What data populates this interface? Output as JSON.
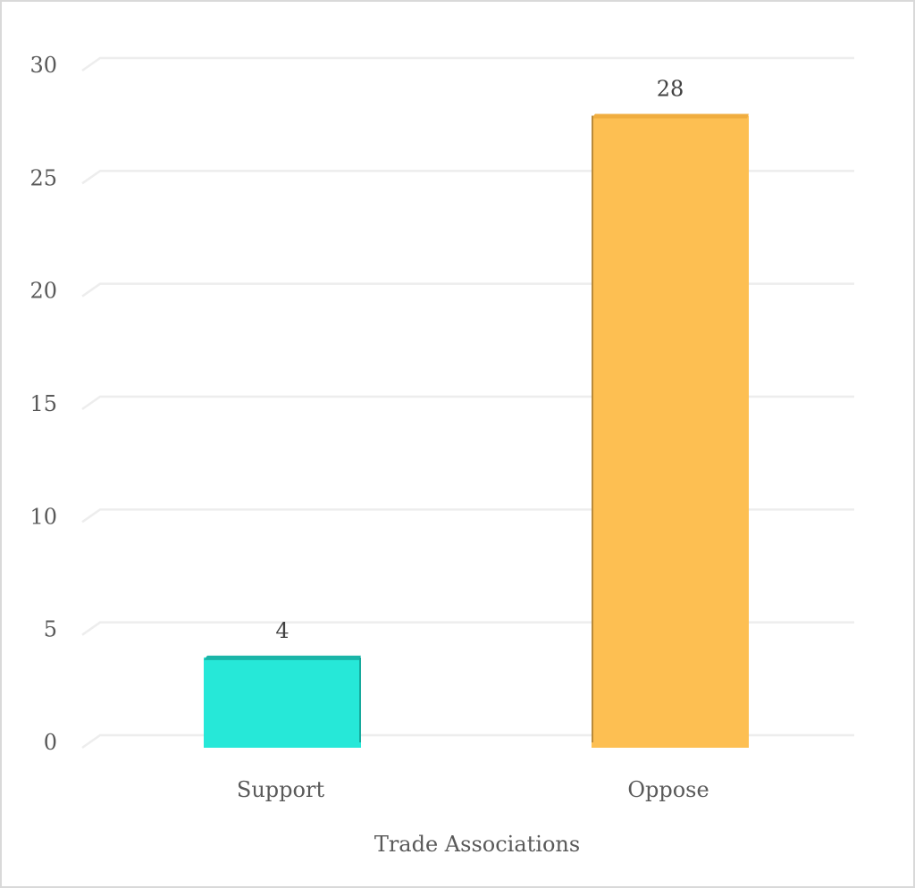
{
  "chart_data": {
    "type": "bar",
    "style": "3d-column",
    "title": "",
    "xlabel": "Trade Associations",
    "ylabel": "",
    "categories": [
      "Support",
      "Oppose"
    ],
    "values": [
      4,
      28
    ],
    "data_labels": [
      "4",
      "28"
    ],
    "colors": [
      "#26e8d8",
      "#fdbf52"
    ],
    "ylim": [
      0,
      30
    ],
    "yticks": [
      0,
      5,
      10,
      15,
      20,
      25,
      30
    ],
    "ytick_labels": [
      "0",
      "5",
      "10",
      "15",
      "20",
      "25",
      "30"
    ],
    "grid": true,
    "legend": null
  }
}
